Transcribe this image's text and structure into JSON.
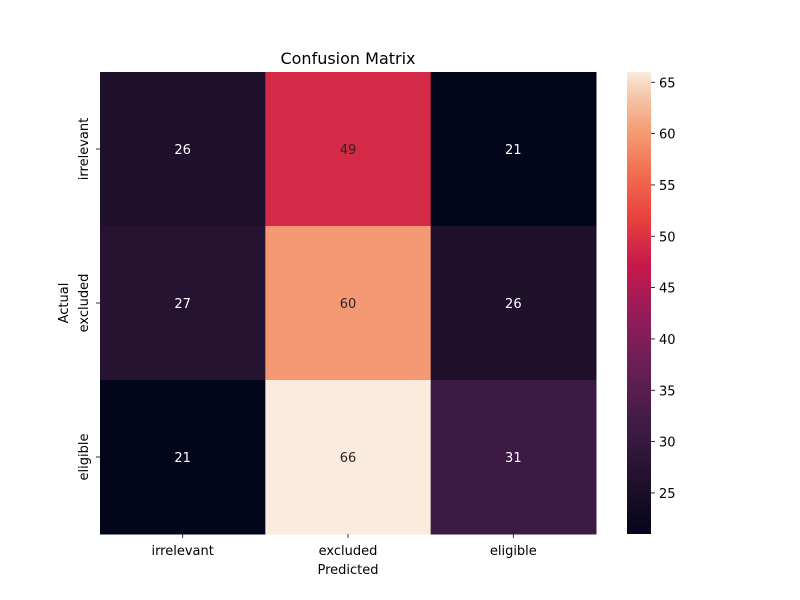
{
  "chart_data": {
    "type": "heatmap",
    "title": "Confusion Matrix",
    "xlabel": "Predicted",
    "ylabel": "Actual",
    "x_categories": [
      "irrelevant",
      "excluded",
      "eligible"
    ],
    "y_categories": [
      "irrelevant",
      "excluded",
      "eligible"
    ],
    "values": [
      [
        26,
        49,
        21
      ],
      [
        27,
        60,
        26
      ],
      [
        21,
        66,
        31
      ]
    ],
    "colorbar": {
      "min": 21,
      "max": 66,
      "ticks": [
        25,
        30,
        35,
        40,
        45,
        50,
        55,
        60,
        65
      ],
      "colormap": "rocket"
    },
    "annotation_colors": {
      "on_dark": "#ffffff",
      "on_light": "#262626"
    }
  }
}
